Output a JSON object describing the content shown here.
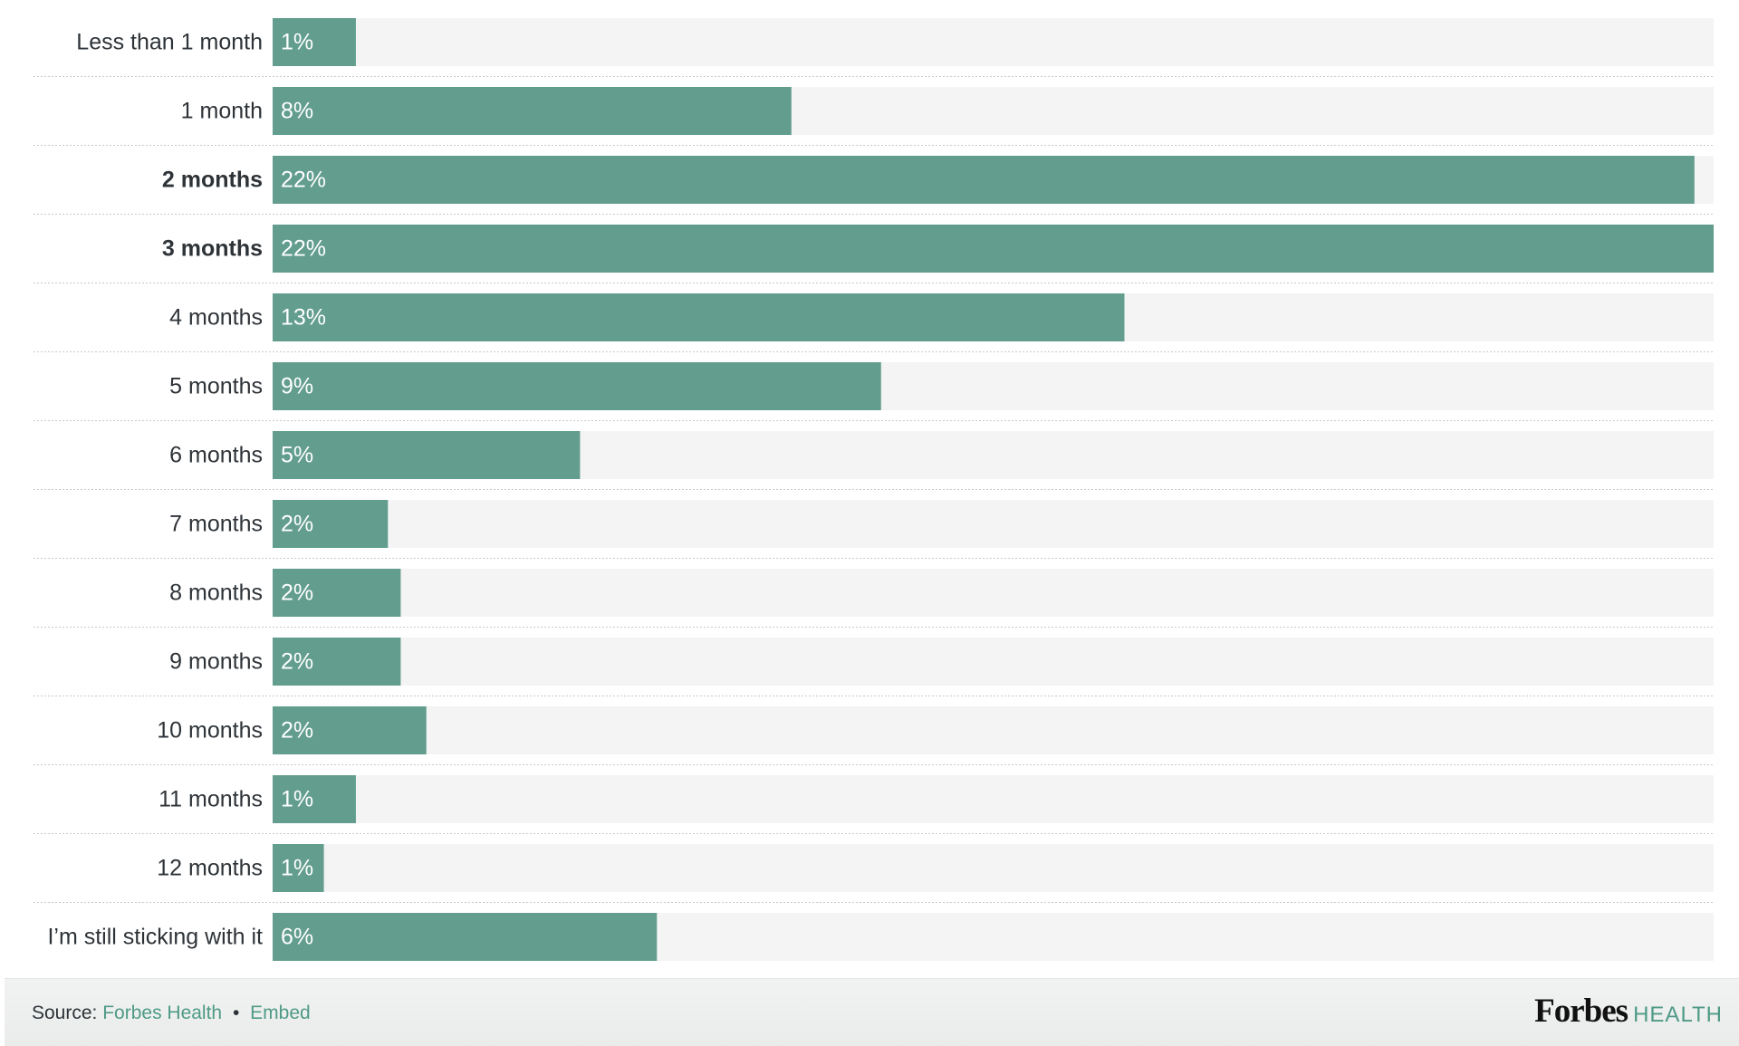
{
  "chart_data": {
    "type": "bar",
    "orientation": "horizontal",
    "categories": [
      "Less than 1 month",
      "1 month",
      "2 months",
      "3 months",
      "4 months",
      "5 months",
      "6 months",
      "7 months",
      "8 months",
      "9 months",
      "10 months",
      "11 months",
      "12 months",
      "I’m still sticking with it"
    ],
    "values": [
      1.3,
      8.1,
      22.2,
      22.5,
      13.3,
      9.5,
      4.8,
      1.8,
      2.0,
      2.0,
      2.4,
      1.3,
      0.8,
      6.0
    ],
    "value_labels": [
      "1%",
      "8%",
      "22%",
      "22%",
      "13%",
      "9%",
      "5%",
      "2%",
      "2%",
      "2%",
      "2%",
      "1%",
      "1%",
      "6%"
    ],
    "highlighted_categories": [
      "2 months",
      "3 months"
    ],
    "xlim": [
      0,
      22.5
    ],
    "grid": false,
    "colors": {
      "bar": "#629d8d",
      "track": "#f4f4f4",
      "label_text": "#2e3338",
      "value_text": "#ffffff",
      "separator": "#c9c9c9"
    }
  },
  "footer": {
    "source_prefix": "Source:",
    "source_name": "Forbes Health",
    "separator": "•",
    "embed_label": "Embed",
    "logo_brand": "Forbes",
    "logo_section": "HEALTH",
    "link_color": "#4f9a86"
  }
}
